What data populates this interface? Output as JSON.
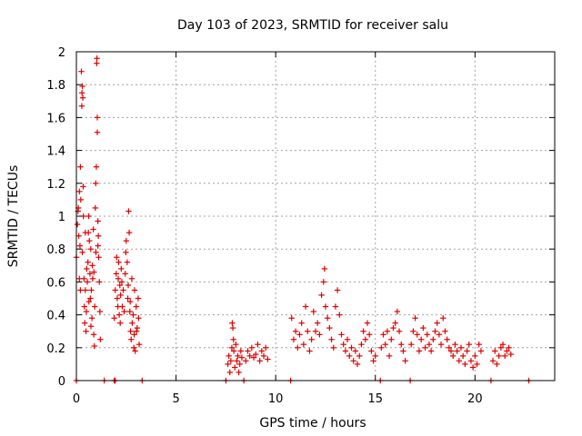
{
  "chart_data": {
    "type": "scatter",
    "title": "Day 103 of 2023, SRMTID for receiver salu",
    "xlabel": "GPS time / hours",
    "ylabel": "SRMTID / TECUs",
    "xlim": [
      0,
      24
    ],
    "ylim": [
      0,
      2
    ],
    "xticks": [
      0,
      5,
      10,
      15,
      20
    ],
    "xtick_labels": [
      "0",
      "5",
      "10",
      "15",
      "20"
    ],
    "yticks": [
      0,
      0.2,
      0.4,
      0.6,
      0.8,
      1,
      1.2,
      1.4,
      1.6,
      1.8,
      2
    ],
    "ytick_labels": [
      "0",
      "0.2",
      "0.4",
      "0.6",
      "0.8",
      "1",
      "1.2",
      "1.4",
      "1.6",
      "1.8",
      "2"
    ],
    "grid": true,
    "marker": "+",
    "color": "#e00000",
    "series": [
      {
        "name": "SRMTID",
        "points": [
          [
            0.0,
            0.75
          ],
          [
            0.05,
            0.95
          ],
          [
            0.08,
            1.03
          ],
          [
            0.1,
            1.05
          ],
          [
            0.12,
            0.88
          ],
          [
            0.15,
            1.15
          ],
          [
            0.18,
            0.82
          ],
          [
            0.2,
            1.3
          ],
          [
            0.22,
            1.1
          ],
          [
            0.25,
            1.88
          ],
          [
            0.27,
            1.67
          ],
          [
            0.28,
            1.75
          ],
          [
            0.3,
            1.79
          ],
          [
            0.32,
            1.72
          ],
          [
            0.34,
            1.18
          ],
          [
            0.35,
            1.0
          ],
          [
            0.38,
            0.62
          ],
          [
            0.4,
            0.45
          ],
          [
            0.42,
            0.35
          ],
          [
            0.45,
            0.55
          ],
          [
            0.48,
            0.3
          ],
          [
            0.5,
            0.42
          ],
          [
            0.55,
            0.6
          ],
          [
            0.58,
            0.72
          ],
          [
            0.6,
            0.9
          ],
          [
            0.62,
            1.0
          ],
          [
            0.65,
            0.85
          ],
          [
            0.68,
            0.65
          ],
          [
            0.7,
            0.5
          ],
          [
            0.72,
            0.8
          ],
          [
            0.75,
            0.55
          ],
          [
            0.78,
            0.38
          ],
          [
            0.8,
            0.7
          ],
          [
            0.82,
            0.62
          ],
          [
            0.85,
            0.92
          ],
          [
            0.87,
            0.28
          ],
          [
            0.9,
            0.21
          ],
          [
            0.92,
            0.45
          ],
          [
            0.95,
            1.05
          ],
          [
            0.97,
            1.2
          ],
          [
            1.0,
            1.3
          ],
          [
            1.02,
            1.93
          ],
          [
            1.03,
            1.96
          ],
          [
            1.05,
            1.6
          ],
          [
            1.05,
            1.51
          ],
          [
            1.08,
            0.97
          ],
          [
            1.1,
            0.88
          ],
          [
            1.12,
            0.75
          ],
          [
            1.15,
            0.6
          ],
          [
            1.18,
            0.42
          ],
          [
            1.2,
            0.25
          ],
          [
            0.15,
            0.62
          ],
          [
            0.2,
            0.55
          ],
          [
            0.3,
            0.78
          ],
          [
            0.45,
            0.9
          ],
          [
            0.52,
            0.68
          ],
          [
            0.63,
            0.48
          ],
          [
            0.73,
            0.33
          ],
          [
            0.88,
            0.66
          ],
          [
            0.98,
            0.78
          ],
          [
            1.08,
            0.82
          ],
          [
            1.9,
            0.38
          ],
          [
            1.95,
            0.55
          ],
          [
            2.0,
            0.65
          ],
          [
            2.02,
            0.75
          ],
          [
            2.05,
            0.5
          ],
          [
            2.08,
            0.45
          ],
          [
            2.1,
            0.62
          ],
          [
            2.12,
            0.72
          ],
          [
            2.15,
            0.4
          ],
          [
            2.18,
            0.58
          ],
          [
            2.2,
            0.35
          ],
          [
            2.22,
            0.52
          ],
          [
            2.25,
            0.68
          ],
          [
            2.28,
            0.6
          ],
          [
            2.3,
            0.45
          ],
          [
            2.35,
            0.55
          ],
          [
            2.4,
            0.42
          ],
          [
            2.45,
            0.65
          ],
          [
            2.5,
            0.85
          ],
          [
            2.55,
            0.72
          ],
          [
            2.6,
            0.58
          ],
          [
            2.62,
            1.03
          ],
          [
            2.65,
            0.9
          ],
          [
            2.7,
            0.48
          ],
          [
            2.72,
            0.3
          ],
          [
            2.75,
            0.25
          ],
          [
            2.78,
            0.62
          ],
          [
            2.8,
            0.35
          ],
          [
            2.85,
            0.4
          ],
          [
            2.88,
            0.2
          ],
          [
            2.9,
            0.28
          ],
          [
            2.95,
            0.18
          ],
          [
            3.0,
            0.45
          ],
          [
            3.05,
            0.32
          ],
          [
            3.1,
            0.5
          ],
          [
            3.12,
            0.38
          ],
          [
            3.15,
            0.22
          ],
          [
            2.48,
            0.78
          ],
          [
            2.58,
            0.5
          ],
          [
            2.68,
            0.42
          ],
          [
            2.92,
            0.55
          ],
          [
            3.02,
            0.3
          ],
          [
            7.6,
            0.1
          ],
          [
            7.65,
            0.15
          ],
          [
            7.7,
            0.05
          ],
          [
            7.75,
            0.12
          ],
          [
            7.8,
            0.2
          ],
          [
            7.82,
            0.35
          ],
          [
            7.85,
            0.32
          ],
          [
            7.88,
            0.25
          ],
          [
            7.9,
            0.18
          ],
          [
            7.95,
            0.08
          ],
          [
            8.0,
            0.22
          ],
          [
            8.05,
            0.12
          ],
          [
            8.1,
            0.15
          ],
          [
            8.15,
            0.05
          ],
          [
            8.2,
            0.1
          ],
          [
            8.25,
            0.18
          ],
          [
            8.3,
            0.14
          ],
          [
            8.5,
            0.12
          ],
          [
            8.6,
            0.18
          ],
          [
            8.7,
            0.15
          ],
          [
            8.8,
            0.2
          ],
          [
            8.9,
            0.14
          ],
          [
            9.0,
            0.16
          ],
          [
            9.1,
            0.22
          ],
          [
            9.2,
            0.12
          ],
          [
            9.3,
            0.18
          ],
          [
            9.4,
            0.15
          ],
          [
            9.5,
            0.2
          ],
          [
            9.6,
            0.13
          ],
          [
            10.8,
            0.38
          ],
          [
            10.9,
            0.25
          ],
          [
            11.0,
            0.3
          ],
          [
            11.1,
            0.2
          ],
          [
            11.2,
            0.28
          ],
          [
            11.3,
            0.35
          ],
          [
            11.4,
            0.22
          ],
          [
            11.5,
            0.45
          ],
          [
            11.6,
            0.3
          ],
          [
            11.7,
            0.18
          ],
          [
            11.8,
            0.25
          ],
          [
            11.9,
            0.42
          ],
          [
            12.0,
            0.3
          ],
          [
            12.1,
            0.35
          ],
          [
            12.2,
            0.28
          ],
          [
            12.3,
            0.52
          ],
          [
            12.4,
            0.6
          ],
          [
            12.45,
            0.68
          ],
          [
            12.5,
            0.45
          ],
          [
            12.6,
            0.38
          ],
          [
            12.7,
            0.32
          ],
          [
            12.8,
            0.25
          ],
          [
            12.9,
            0.2
          ],
          [
            13.0,
            0.45
          ],
          [
            13.1,
            0.55
          ],
          [
            13.2,
            0.4
          ],
          [
            13.3,
            0.28
          ],
          [
            13.4,
            0.22
          ],
          [
            13.5,
            0.18
          ],
          [
            13.6,
            0.25
          ],
          [
            13.7,
            0.15
          ],
          [
            13.8,
            0.2
          ],
          [
            13.9,
            0.12
          ],
          [
            14.0,
            0.18
          ],
          [
            14.1,
            0.1
          ],
          [
            14.2,
            0.15
          ],
          [
            14.3,
            0.22
          ],
          [
            14.4,
            0.3
          ],
          [
            14.5,
            0.25
          ],
          [
            14.6,
            0.35
          ],
          [
            14.7,
            0.28
          ],
          [
            14.8,
            0.18
          ],
          [
            14.9,
            0.12
          ],
          [
            15.0,
            0.15
          ],
          [
            15.3,
            0.2
          ],
          [
            15.4,
            0.28
          ],
          [
            15.5,
            0.22
          ],
          [
            15.6,
            0.3
          ],
          [
            15.7,
            0.15
          ],
          [
            15.8,
            0.25
          ],
          [
            15.9,
            0.32
          ],
          [
            16.0,
            0.35
          ],
          [
            16.1,
            0.42
          ],
          [
            16.2,
            0.3
          ],
          [
            16.3,
            0.22
          ],
          [
            16.4,
            0.18
          ],
          [
            16.5,
            0.12
          ],
          [
            16.8,
            0.22
          ],
          [
            16.9,
            0.3
          ],
          [
            17.0,
            0.38
          ],
          [
            17.1,
            0.28
          ],
          [
            17.2,
            0.18
          ],
          [
            17.3,
            0.25
          ],
          [
            17.4,
            0.32
          ],
          [
            17.5,
            0.2
          ],
          [
            17.6,
            0.28
          ],
          [
            17.7,
            0.22
          ],
          [
            17.8,
            0.18
          ],
          [
            17.9,
            0.25
          ],
          [
            18.0,
            0.3
          ],
          [
            18.1,
            0.35
          ],
          [
            18.2,
            0.28
          ],
          [
            18.3,
            0.22
          ],
          [
            18.4,
            0.38
          ],
          [
            18.5,
            0.3
          ],
          [
            18.6,
            0.25
          ],
          [
            18.7,
            0.2
          ],
          [
            18.8,
            0.18
          ],
          [
            18.9,
            0.15
          ],
          [
            19.0,
            0.22
          ],
          [
            19.1,
            0.18
          ],
          [
            19.2,
            0.12
          ],
          [
            19.3,
            0.2
          ],
          [
            19.4,
            0.15
          ],
          [
            19.5,
            0.1
          ],
          [
            19.6,
            0.18
          ],
          [
            19.7,
            0.22
          ],
          [
            19.8,
            0.12
          ],
          [
            19.9,
            0.08
          ],
          [
            20.0,
            0.15
          ],
          [
            20.1,
            0.1
          ],
          [
            20.2,
            0.22
          ],
          [
            20.3,
            0.18
          ],
          [
            20.9,
            0.12
          ],
          [
            21.0,
            0.18
          ],
          [
            21.1,
            0.1
          ],
          [
            21.2,
            0.15
          ],
          [
            21.3,
            0.2
          ],
          [
            21.4,
            0.22
          ],
          [
            21.5,
            0.15
          ],
          [
            21.6,
            0.18
          ],
          [
            21.7,
            0.2
          ],
          [
            21.8,
            0.16
          ],
          [
            0.0,
            0.0
          ],
          [
            1.4,
            0.0
          ],
          [
            1.9,
            0.0
          ],
          [
            1.95,
            0.0
          ],
          [
            3.3,
            0.0
          ],
          [
            7.5,
            0.0
          ],
          [
            8.4,
            0.0
          ],
          [
            10.75,
            0.0
          ],
          [
            15.25,
            0.0
          ],
          [
            16.75,
            0.0
          ],
          [
            20.8,
            0.0
          ],
          [
            22.7,
            0.0
          ]
        ]
      }
    ]
  }
}
